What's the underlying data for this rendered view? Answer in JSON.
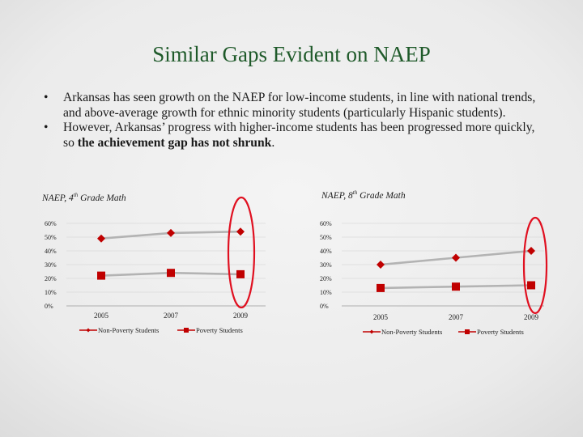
{
  "slide": {
    "title": "Similar Gaps Evident on NAEP",
    "bullets": [
      {
        "marker": "•",
        "before": "Arkansas has seen growth on the NAEP for low-income students, in line with national trends, and above-average growth for ethnic minority students (particularly Hispanic students).",
        "bold": "",
        "after": ""
      },
      {
        "marker": "•",
        "before": "However, Arkansas’ progress with higher-income students has been progressed more quickly, so ",
        "bold": "the achievement gap has not shrunk",
        "after": "."
      }
    ]
  },
  "colors": {
    "background": "#ededed",
    "title": "#1f5a2a",
    "line": "#b3b3b3",
    "marker": "#c00000",
    "highlight": "#e01020",
    "grid": "#cfcfcf"
  },
  "chart_data": [
    {
      "type": "line",
      "title_prefix": "NAEP, 4",
      "title_sup": "th",
      "title_suffix": " Grade Math",
      "categories": [
        "2005",
        "2007",
        "2009"
      ],
      "ylim": [
        0,
        60
      ],
      "yticks": [
        "0%",
        "10%",
        "20%",
        "30%",
        "40%",
        "50%",
        "60%"
      ],
      "series": [
        {
          "name": "Non-Poverty Students",
          "marker": "diamond",
          "values": [
            49,
            53,
            54
          ]
        },
        {
          "name": "Poverty Students",
          "marker": "square",
          "values": [
            22,
            24,
            23
          ]
        }
      ],
      "highlight_category": "2009",
      "legend": "bottom"
    },
    {
      "type": "line",
      "title_prefix": "NAEP, 8",
      "title_sup": "th",
      "title_suffix": " Grade Math",
      "categories": [
        "2005",
        "2007",
        "2009"
      ],
      "ylim": [
        0,
        60
      ],
      "yticks": [
        "0%",
        "10%",
        "20%",
        "30%",
        "40%",
        "50%",
        "60%"
      ],
      "series": [
        {
          "name": "Non-Poverty Students",
          "marker": "diamond",
          "values": [
            30,
            35,
            40
          ]
        },
        {
          "name": "Poverty Students",
          "marker": "square",
          "values": [
            13,
            14,
            15
          ]
        }
      ],
      "highlight_category": "2009",
      "legend": "bottom"
    }
  ]
}
